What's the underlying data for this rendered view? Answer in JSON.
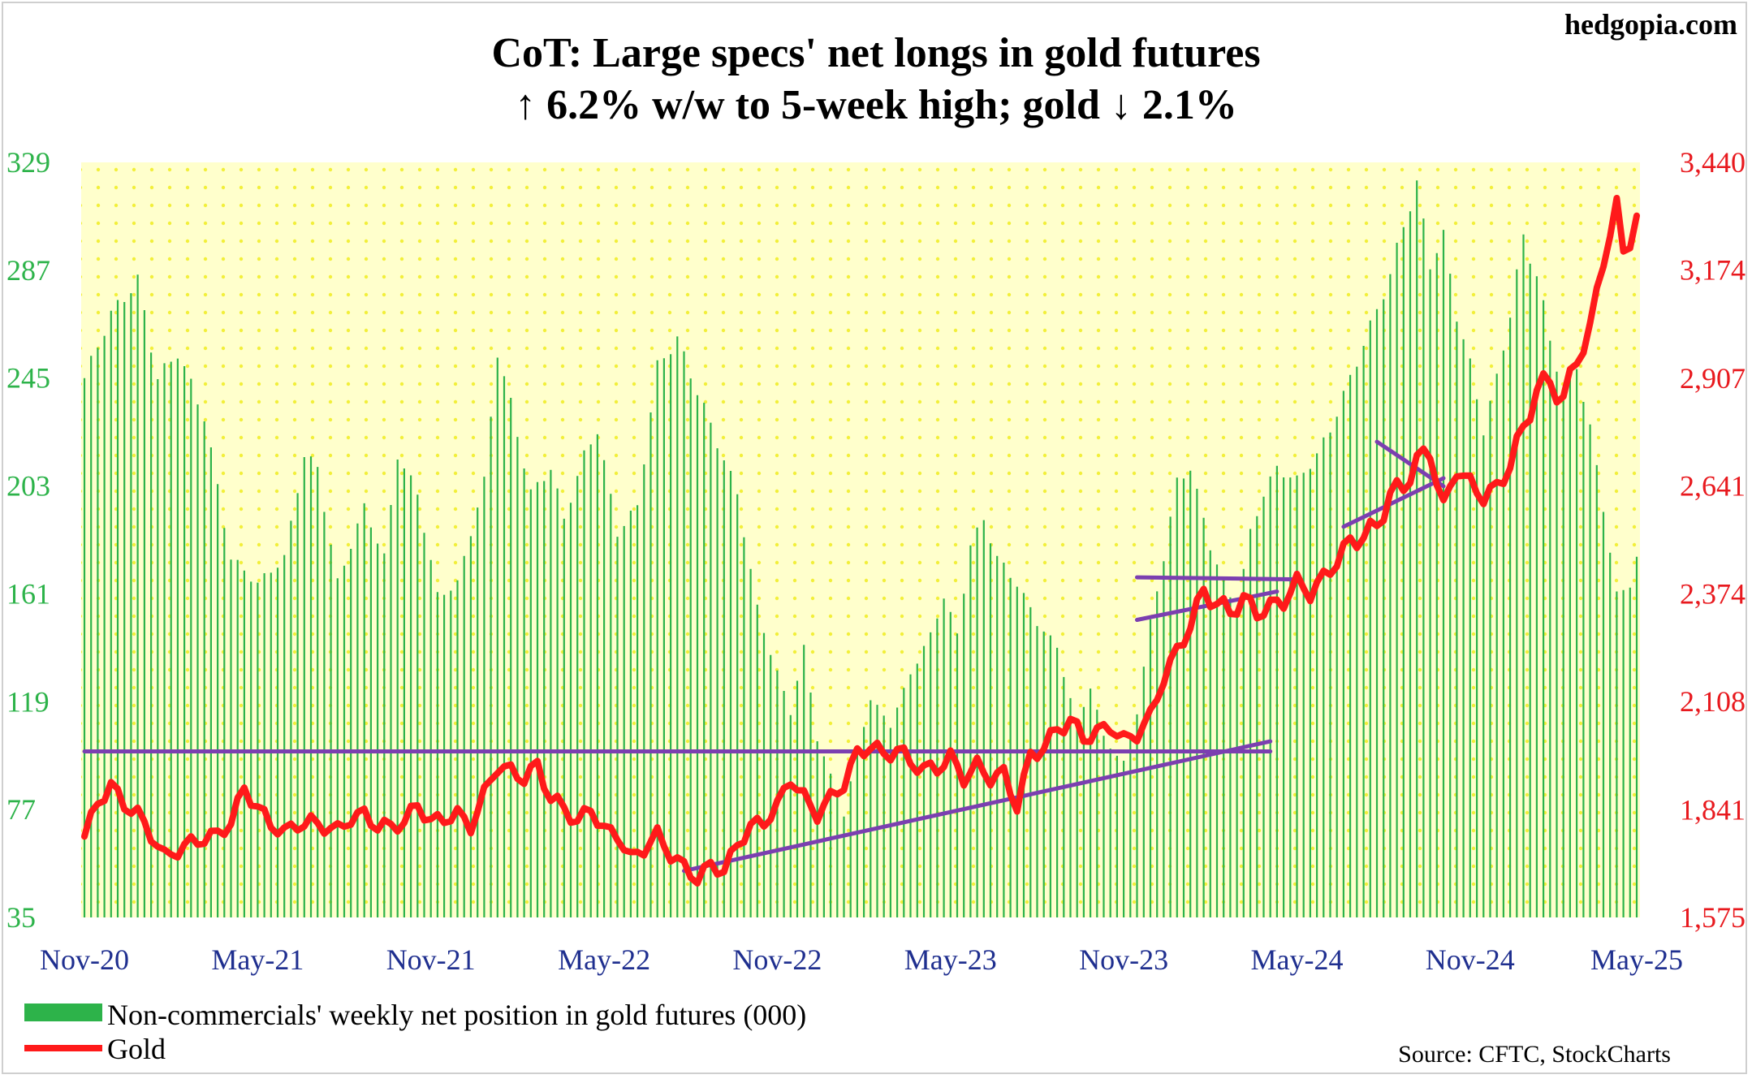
{
  "brand": "hedgopia.com",
  "chart_data": {
    "type": "bar+line",
    "title_line1": "CoT: Large specs' net longs in gold futures",
    "title_line2": "↑ 6.2% w/w to 5-week high; gold ↓ 2.1%",
    "left_axis": {
      "label_color": "#2db34a",
      "ticks": [
        "329",
        "287",
        "245",
        "203",
        "161",
        "119",
        "77",
        "35"
      ],
      "range": [
        35,
        329
      ]
    },
    "right_axis": {
      "label_color": "#e8191e",
      "ticks": [
        "3,440",
        "3,174",
        "2,907",
        "2,641",
        "2,374",
        "2,108",
        "1,841",
        "1,575"
      ],
      "range": [
        1575,
        3440
      ]
    },
    "x_ticks": [
      "Nov-20",
      "May-21",
      "Nov-21",
      "May-22",
      "Nov-22",
      "May-23",
      "Nov-23",
      "May-24",
      "Nov-24",
      "May-25"
    ],
    "weeks": 234,
    "series": [
      {
        "name": "Non-commercials' weekly net position in gold futures (000)",
        "type": "bar",
        "color": "#2db34a",
        "keypoints": [
          [
            0,
            245
          ],
          [
            4,
            270
          ],
          [
            8,
            283
          ],
          [
            11,
            245
          ],
          [
            14,
            255
          ],
          [
            18,
            230
          ],
          [
            22,
            175
          ],
          [
            26,
            165
          ],
          [
            30,
            175
          ],
          [
            33,
            215
          ],
          [
            35,
            210
          ],
          [
            38,
            165
          ],
          [
            42,
            195
          ],
          [
            45,
            175
          ],
          [
            47,
            215
          ],
          [
            50,
            200
          ],
          [
            53,
            160
          ],
          [
            56,
            165
          ],
          [
            60,
            205
          ],
          [
            62,
            255
          ],
          [
            64,
            235
          ],
          [
            67,
            200
          ],
          [
            70,
            210
          ],
          [
            72,
            190
          ],
          [
            75,
            215
          ],
          [
            77,
            225
          ],
          [
            80,
            185
          ],
          [
            83,
            195
          ],
          [
            86,
            250
          ],
          [
            89,
            260
          ],
          [
            92,
            240
          ],
          [
            95,
            220
          ],
          [
            98,
            200
          ],
          [
            101,
            155
          ],
          [
            104,
            130
          ],
          [
            106,
            115
          ],
          [
            108,
            140
          ],
          [
            110,
            105
          ],
          [
            112,
            90
          ],
          [
            114,
            75
          ],
          [
            116,
            100
          ],
          [
            118,
            120
          ],
          [
            121,
            110
          ],
          [
            124,
            130
          ],
          [
            127,
            145
          ],
          [
            129,
            160
          ],
          [
            131,
            145
          ],
          [
            133,
            180
          ],
          [
            135,
            190
          ],
          [
            137,
            175
          ],
          [
            140,
            165
          ],
          [
            143,
            150
          ],
          [
            146,
            140
          ],
          [
            149,
            110
          ],
          [
            151,
            125
          ],
          [
            153,
            105
          ],
          [
            156,
            95
          ],
          [
            158,
            115
          ],
          [
            160,
            150
          ],
          [
            162,
            175
          ],
          [
            164,
            205
          ],
          [
            166,
            210
          ],
          [
            169,
            180
          ],
          [
            171,
            165
          ],
          [
            173,
            155
          ],
          [
            175,
            185
          ],
          [
            177,
            200
          ],
          [
            179,
            210
          ],
          [
            182,
            205
          ],
          [
            185,
            215
          ],
          [
            187,
            225
          ],
          [
            190,
            245
          ],
          [
            193,
            265
          ],
          [
            196,
            285
          ],
          [
            198,
            305
          ],
          [
            200,
            320
          ],
          [
            202,
            290
          ],
          [
            204,
            300
          ],
          [
            206,
            270
          ],
          [
            208,
            250
          ],
          [
            210,
            225
          ],
          [
            212,
            245
          ],
          [
            214,
            270
          ],
          [
            216,
            300
          ],
          [
            218,
            285
          ],
          [
            220,
            260
          ],
          [
            222,
            240
          ],
          [
            224,
            250
          ],
          [
            226,
            225
          ],
          [
            228,
            195
          ],
          [
            230,
            160
          ],
          [
            232,
            165
          ],
          [
            233,
            175
          ]
        ]
      },
      {
        "name": "Gold",
        "type": "line",
        "color": "#ff1a1a",
        "keypoints": [
          [
            0,
            1775
          ],
          [
            2,
            1860
          ],
          [
            4,
            1900
          ],
          [
            6,
            1855
          ],
          [
            8,
            1830
          ],
          [
            10,
            1780
          ],
          [
            12,
            1725
          ],
          [
            14,
            1740
          ],
          [
            16,
            1760
          ],
          [
            18,
            1770
          ],
          [
            20,
            1780
          ],
          [
            22,
            1810
          ],
          [
            24,
            1895
          ],
          [
            26,
            1845
          ],
          [
            28,
            1805
          ],
          [
            30,
            1785
          ],
          [
            32,
            1805
          ],
          [
            34,
            1810
          ],
          [
            36,
            1800
          ],
          [
            38,
            1790
          ],
          [
            40,
            1820
          ],
          [
            42,
            1830
          ],
          [
            44,
            1800
          ],
          [
            46,
            1800
          ],
          [
            48,
            1810
          ],
          [
            50,
            1855
          ],
          [
            52,
            1810
          ],
          [
            54,
            1820
          ],
          [
            56,
            1830
          ],
          [
            58,
            1800
          ],
          [
            60,
            1880
          ],
          [
            62,
            1950
          ],
          [
            64,
            1935
          ],
          [
            66,
            1920
          ],
          [
            68,
            1950
          ],
          [
            70,
            1870
          ],
          [
            72,
            1845
          ],
          [
            74,
            1810
          ],
          [
            76,
            1845
          ],
          [
            78,
            1790
          ],
          [
            80,
            1780
          ],
          [
            82,
            1720
          ],
          [
            84,
            1745
          ],
          [
            86,
            1780
          ],
          [
            88,
            1730
          ],
          [
            90,
            1700
          ],
          [
            92,
            1670
          ],
          [
            94,
            1705
          ],
          [
            96,
            1690
          ],
          [
            98,
            1755
          ],
          [
            100,
            1800
          ],
          [
            102,
            1810
          ],
          [
            104,
            1850
          ],
          [
            106,
            1920
          ],
          [
            108,
            1870
          ],
          [
            110,
            1830
          ],
          [
            112,
            1870
          ],
          [
            114,
            1905
          ],
          [
            116,
            1980
          ],
          [
            118,
            2000
          ],
          [
            120,
            1975
          ],
          [
            122,
            1990
          ],
          [
            124,
            1960
          ],
          [
            126,
            1940
          ],
          [
            128,
            1945
          ],
          [
            130,
            1970
          ],
          [
            132,
            1920
          ],
          [
            134,
            1950
          ],
          [
            136,
            1920
          ],
          [
            138,
            1930
          ],
          [
            140,
            1850
          ],
          [
            142,
            1975
          ],
          [
            144,
            1995
          ],
          [
            146,
            2040
          ],
          [
            148,
            2060
          ],
          [
            150,
            2020
          ],
          [
            152,
            2030
          ],
          [
            154,
            2050
          ],
          [
            156,
            2010
          ],
          [
            158,
            2030
          ],
          [
            160,
            2070
          ],
          [
            162,
            2170
          ],
          [
            164,
            2230
          ],
          [
            166,
            2300
          ],
          [
            168,
            2380
          ],
          [
            170,
            2350
          ],
          [
            172,
            2330
          ],
          [
            174,
            2360
          ],
          [
            176,
            2330
          ],
          [
            178,
            2340
          ],
          [
            180,
            2360
          ],
          [
            182,
            2400
          ],
          [
            184,
            2380
          ],
          [
            186,
            2410
          ],
          [
            188,
            2460
          ],
          [
            190,
            2500
          ],
          [
            192,
            2520
          ],
          [
            194,
            2540
          ],
          [
            196,
            2620
          ],
          [
            198,
            2640
          ],
          [
            200,
            2700
          ],
          [
            202,
            2730
          ],
          [
            204,
            2580
          ],
          [
            206,
            2690
          ],
          [
            208,
            2640
          ],
          [
            210,
            2620
          ],
          [
            212,
            2630
          ],
          [
            214,
            2700
          ],
          [
            216,
            2780
          ],
          [
            218,
            2880
          ],
          [
            220,
            2900
          ],
          [
            222,
            2850
          ],
          [
            224,
            2960
          ],
          [
            226,
            3020
          ],
          [
            228,
            3210
          ],
          [
            230,
            3320
          ],
          [
            231,
            3220
          ],
          [
            233,
            3300
          ]
        ]
      }
    ],
    "trendlines": [
      {
        "from": [
          0,
          1985
        ],
        "to": [
          178,
          1985
        ]
      },
      {
        "from": [
          90,
          1690
        ],
        "to": [
          178,
          2010
        ]
      },
      {
        "from": [
          158,
          2415
        ],
        "to": [
          182,
          2410
        ]
      },
      {
        "from": [
          158,
          2310
        ],
        "to": [
          179,
          2380
        ]
      },
      {
        "from": [
          194,
          2750
        ],
        "to": [
          204,
          2640
        ]
      },
      {
        "from": [
          189,
          2540
        ],
        "to": [
          204,
          2660
        ]
      }
    ]
  },
  "legend": {
    "bars": "Non-commercials' weekly net position in gold futures (000)",
    "line": "Gold"
  },
  "source": "Source: CFTC, StockCharts"
}
